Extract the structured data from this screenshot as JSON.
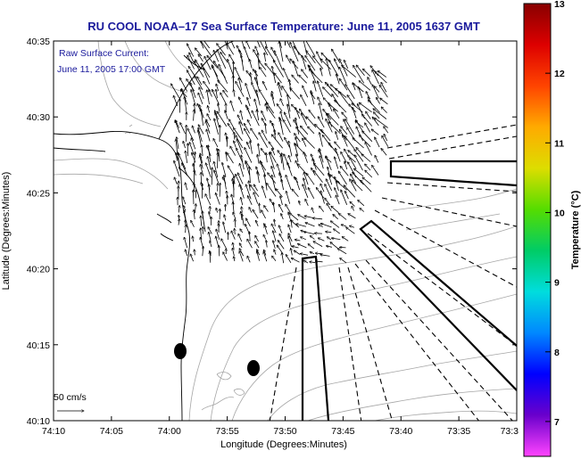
{
  "chart_data": {
    "type": "vector-field-map",
    "title": "RU COOL  NOAA–17  Sea Surface Temperature:  June 11, 2005 1637 GMT",
    "annotation_line1": "Raw Surface Current:",
    "annotation_line2": "June 11, 2005 17:00 GMT",
    "xlabel": "Longitude (Degrees:Minutes)",
    "ylabel": "Latitude (Degrees:Minutes)",
    "x_ticks": [
      "74:10",
      "74:05",
      "74:00",
      "73:55",
      "73:50",
      "73:45",
      "73:40",
      "73:35",
      "73:3"
    ],
    "y_ticks": [
      "40:35",
      "40:30",
      "40:25",
      "40:20",
      "40:15",
      "40:10"
    ],
    "xlim_min_west": [
      10,
      30.5
    ],
    "ylim_min_north": [
      10,
      35
    ],
    "scale_label": "50 cm/s",
    "colorbar": {
      "label": "Temperature (°C)",
      "range": [
        6.5,
        13
      ],
      "ticks": [
        "13",
        "12",
        "11",
        "10",
        "9",
        "8",
        "7"
      ],
      "stops": [
        "#ff44ff",
        "#6a00cc",
        "#0000ff",
        "#0088ff",
        "#00dddd",
        "#00cc66",
        "#55dd00",
        "#dddd00",
        "#ffaa00",
        "#ff4400",
        "#dd0000",
        "#880000"
      ]
    },
    "markers": [
      {
        "lon_min": 58.7,
        "lat_min": 14.6
      },
      {
        "lon_min": 52.1,
        "lat_min": 13.5
      }
    ],
    "field_region": {
      "lon_min": [
        40,
        59
      ],
      "lat_min": [
        19,
        34
      ]
    },
    "vector_field": "surface currents, predominantly northward in the western half and north-westward in the east"
  }
}
